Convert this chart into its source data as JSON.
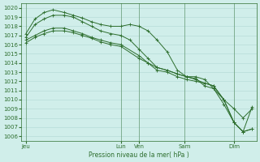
{
  "xlabel": "Pression niveau de la mer( hPa )",
  "bg_color": "#d0eeea",
  "grid_color": "#b0d8d4",
  "line_color": "#2d6e2d",
  "ylim": [
    1005.5,
    1020.5
  ],
  "yticks": [
    1006,
    1007,
    1008,
    1009,
    1010,
    1011,
    1012,
    1013,
    1014,
    1015,
    1016,
    1017,
    1018,
    1019,
    1020
  ],
  "xtick_labels": [
    "Jeu",
    "Lun",
    "Ven",
    "Sam",
    "Dim"
  ],
  "xtick_x": [
    0.0,
    0.42,
    0.5,
    0.7,
    0.92
  ],
  "vlines_x": [
    0.0,
    0.42,
    0.5,
    0.7,
    0.92
  ],
  "series": [
    {
      "x": [
        0.0,
        0.04,
        0.08,
        0.12,
        0.17,
        0.21,
        0.25,
        0.29,
        0.33,
        0.375,
        0.42,
        0.46,
        0.5,
        0.54,
        0.58,
        0.625,
        0.67,
        0.71,
        0.75,
        0.79,
        0.83,
        0.875,
        0.92,
        0.96,
        1.0
      ],
      "y": [
        1017.2,
        1018.8,
        1019.5,
        1019.8,
        1019.5,
        1019.2,
        1018.9,
        1018.5,
        1018.2,
        1018.0,
        1018.0,
        1018.2,
        1018.0,
        1017.5,
        1016.5,
        1015.2,
        1013.2,
        1012.5,
        1012.5,
        1012.2,
        1011.2,
        1010.0,
        1009.0,
        1008.0,
        1009.0
      ]
    },
    {
      "x": [
        0.0,
        0.04,
        0.08,
        0.12,
        0.17,
        0.21,
        0.25,
        0.29,
        0.33,
        0.375,
        0.42,
        0.46,
        0.5,
        0.54,
        0.58,
        0.625,
        0.67,
        0.71,
        0.75,
        0.79,
        0.83,
        0.875,
        0.92,
        0.96,
        1.0
      ],
      "y": [
        1016.8,
        1018.2,
        1018.8,
        1019.2,
        1019.2,
        1019.0,
        1018.5,
        1018.0,
        1017.5,
        1017.2,
        1017.0,
        1016.5,
        1015.5,
        1014.5,
        1013.5,
        1013.2,
        1012.8,
        1012.5,
        1012.3,
        1011.5,
        1011.2,
        1009.5,
        1007.5,
        1006.5,
        1009.2
      ]
    },
    {
      "x": [
        0.0,
        0.04,
        0.08,
        0.12,
        0.17,
        0.21,
        0.25,
        0.29,
        0.33,
        0.375,
        0.42,
        0.5,
        0.54,
        0.58,
        0.625,
        0.67,
        0.71,
        0.75,
        0.79,
        0.83,
        0.875,
        0.92,
        0.96,
        1.0
      ],
      "y": [
        1016.5,
        1017.0,
        1017.5,
        1017.8,
        1017.8,
        1017.5,
        1017.2,
        1016.8,
        1016.5,
        1016.2,
        1016.0,
        1014.8,
        1014.0,
        1013.2,
        1013.0,
        1012.5,
        1012.2,
        1012.0,
        1011.8,
        1011.5,
        1010.0,
        1007.5,
        1006.5,
        1006.8
      ]
    },
    {
      "x": [
        0.0,
        0.04,
        0.08,
        0.12,
        0.17,
        0.21,
        0.25,
        0.29,
        0.33,
        0.375,
        0.42,
        0.5,
        0.54,
        0.58,
        0.625,
        0.67,
        0.71,
        0.75,
        0.79,
        0.83,
        0.875,
        0.92,
        0.96,
        1.0
      ],
      "y": [
        1016.2,
        1016.8,
        1017.2,
        1017.5,
        1017.5,
        1017.3,
        1017.0,
        1016.7,
        1016.3,
        1016.0,
        1015.8,
        1014.5,
        1014.0,
        1013.5,
        1013.2,
        1012.8,
        1012.5,
        1012.2,
        1011.8,
        1011.5,
        1010.0,
        1007.5,
        1006.5,
        1006.8
      ]
    }
  ]
}
